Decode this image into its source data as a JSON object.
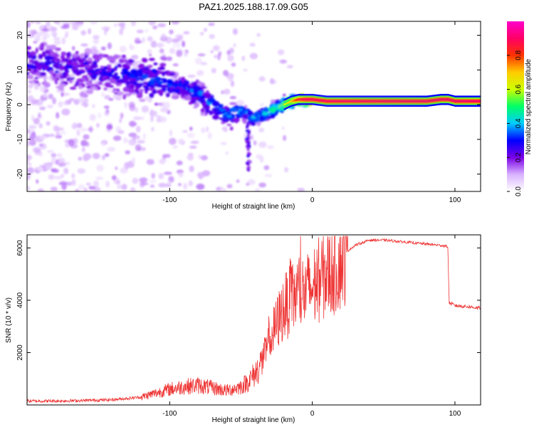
{
  "title": "PAZ1.2025.188.17.09.G05",
  "chart_data": [
    {
      "type": "heatmap",
      "title": "PAZ1.2025.188.17.09.G05",
      "xlabel": "Height of straight line (km)",
      "ylabel": "Frequency (Hz)",
      "xlim": [
        -200,
        118
      ],
      "ylim": [
        -25,
        24
      ],
      "x_ticks": [
        -100,
        0,
        100
      ],
      "y_ticks": [
        -20,
        -10,
        0,
        10,
        20
      ],
      "colorbar": {
        "label": "Normalized spectral amplitude",
        "ticks": [
          0.0,
          0.2,
          0.4,
          0.6,
          0.8
        ],
        "range": [
          0,
          1
        ],
        "colormap": [
          "#ffffff",
          "#d9b3ff",
          "#7a00e6",
          "#0000ff",
          "#00ccff",
          "#00ff66",
          "#ccff00",
          "#ffcc00",
          "#ff3300",
          "#ff0066",
          "#ff00cc"
        ]
      },
      "ridge": {
        "x": [
          -200,
          -180,
          -160,
          -140,
          -120,
          -100,
          -90,
          -80,
          -70,
          -60,
          -50,
          -45,
          -40,
          -35,
          -30,
          -25,
          -20,
          -15,
          -10,
          -5,
          0,
          10,
          20,
          40,
          60,
          80,
          90,
          95,
          100,
          110,
          118
        ],
        "y": [
          12,
          11,
          10,
          9,
          8,
          6,
          5,
          3,
          0,
          -3,
          -2,
          -3,
          -4,
          -3,
          -2,
          -1,
          0,
          1,
          1.5,
          1.5,
          1.5,
          1,
          1,
          1,
          1,
          1,
          1.5,
          1.5,
          1,
          1,
          1
        ],
        "amplitude": [
          0.25,
          0.25,
          0.25,
          0.25,
          0.3,
          0.3,
          0.3,
          0.35,
          0.35,
          0.35,
          0.35,
          0.4,
          0.4,
          0.4,
          0.45,
          0.5,
          0.6,
          0.7,
          0.85,
          0.9,
          0.9,
          0.9,
          0.9,
          0.9,
          0.9,
          0.9,
          0.9,
          0.9,
          0.9,
          0.9,
          0.9
        ]
      }
    },
    {
      "type": "line",
      "xlabel": "Height of straight line (km)",
      "ylabel": "SNR (10 * v/v)",
      "xlim": [
        -200,
        118
      ],
      "ylim": [
        0,
        6500
      ],
      "x_ticks": [
        -100,
        0,
        100
      ],
      "y_ticks": [
        2000,
        4000,
        6000
      ],
      "color": "#ee3333",
      "series": [
        {
          "x": [
            -200,
            -180,
            -160,
            -140,
            -120,
            -110,
            -100,
            -90,
            -80,
            -70,
            -60,
            -50,
            -45,
            -40,
            -35,
            -30,
            -25,
            -20,
            -15,
            -10,
            -5,
            0,
            5,
            10,
            15,
            20,
            25,
            30,
            40,
            50,
            60,
            70,
            80,
            90,
            95,
            96,
            100,
            110,
            118
          ],
          "y": [
            150,
            150,
            170,
            200,
            300,
            450,
            600,
            700,
            750,
            650,
            550,
            700,
            900,
            1200,
            1700,
            2400,
            3100,
            3700,
            4000,
            4300,
            4300,
            4500,
            4800,
            5000,
            5200,
            5500,
            5900,
            6100,
            6300,
            6300,
            6250,
            6200,
            6150,
            6100,
            6050,
            3900,
            3800,
            3750,
            3700
          ]
        }
      ]
    }
  ]
}
